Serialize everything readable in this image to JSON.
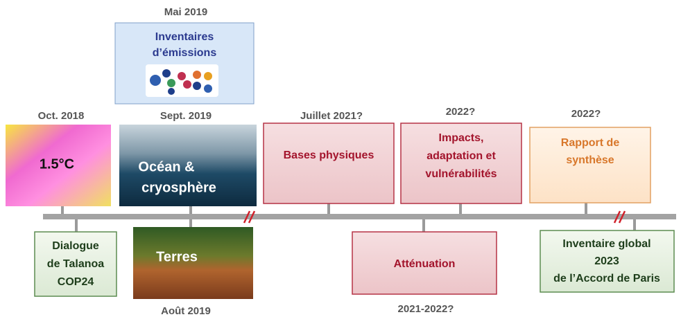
{
  "dates": {
    "oct2018": "Oct. 2018",
    "mai2019": "Mai 2019",
    "sept2019": "Sept. 2019",
    "juillet2021": "Juillet 2021?",
    "impacts": "2022?",
    "synthese": "2022?",
    "aout2019": "Août 2019",
    "attenuation": "2021-2022?"
  },
  "boxes": {
    "sr15": "1.5°C",
    "inventaires": [
      "Inventaires",
      "d’émissions"
    ],
    "ocean": [
      "Océan &",
      "cryosphère"
    ],
    "bases": "Bases physiques",
    "impacts": [
      "Impacts,",
      "adaptation et",
      "vulnérabilités"
    ],
    "synthese": [
      "Rapport de",
      "synthèse"
    ],
    "dialogue": [
      "Dialogue",
      "de Talanoa",
      "COP24"
    ],
    "terres": "Terres",
    "attenuation": "Atténuation",
    "inventaire_global": [
      "Inventaire global",
      "2023",
      "de l’Accord de Paris"
    ]
  }
}
